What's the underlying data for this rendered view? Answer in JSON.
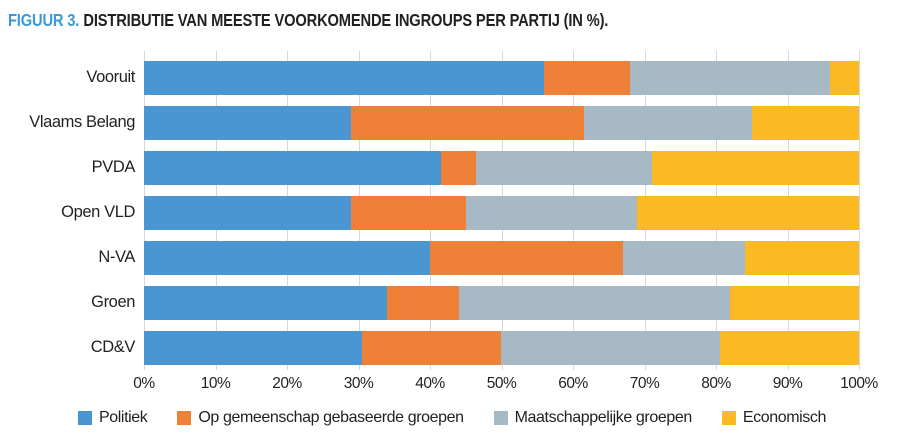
{
  "title": {
    "prefix": "FIGUUR 3.",
    "text": "DISTRIBUTIE VAN MEESTE VOORKOMENDE INGROUPS PER PARTIJ (IN %)."
  },
  "colors": {
    "title_accent": "#3C99D7",
    "title_text": "#221F1F",
    "gridline": "#D8D8D8",
    "axis_text": "#221F1F",
    "background": "#FFFFFF"
  },
  "chart_data": {
    "type": "bar",
    "orientation": "horizontal",
    "stacked": true,
    "title": "FIGUUR 3. DISTRIBUTIE VAN MEESTE VOORKOMENDE INGROUPS PER PARTIJ (IN %).",
    "xlabel": "",
    "ylabel": "",
    "xlim": [
      0,
      100
    ],
    "grid": "vertical",
    "legend_position": "bottom",
    "xticks": [
      "0%",
      "10%",
      "20%",
      "30%",
      "40%",
      "50%",
      "60%",
      "70%",
      "80%",
      "90%",
      "100%"
    ],
    "categories": [
      "Vooruit",
      "Vlaams Belang",
      "PVDA",
      "Open VLD",
      "N-VA",
      "Groen",
      "CD&V"
    ],
    "series": [
      {
        "name": "Politiek",
        "color": "#4A96D2",
        "values": [
          56,
          29,
          41.5,
          29,
          40,
          34,
          30.5
        ]
      },
      {
        "name": "Op gemeenschap gebaseerde groepen",
        "color": "#EF8037",
        "values": [
          12,
          32.5,
          5,
          16,
          27,
          10,
          19.5
        ]
      },
      {
        "name": "Maatschappelijke groepen",
        "color": "#A7B9C4",
        "values": [
          28,
          23.5,
          24.5,
          24,
          17,
          38,
          30.5
        ]
      },
      {
        "name": "Economisch",
        "color": "#FBBA23",
        "values": [
          4,
          15,
          29,
          31,
          16,
          18,
          19.5
        ]
      }
    ]
  }
}
